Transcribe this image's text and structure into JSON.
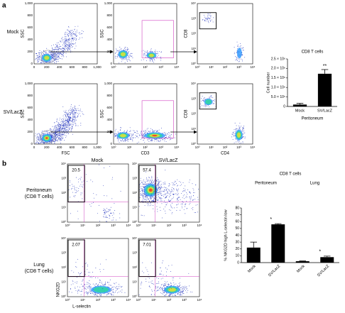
{
  "panel_a": {
    "label": "a",
    "rows": [
      "Mock",
      "SV/LacZ"
    ],
    "scatter_plot": {
      "x_label": "FSC",
      "y_label": "SSC",
      "ticks": [
        "0",
        "200",
        "400",
        "600",
        "800",
        "1,000"
      ]
    },
    "cd3_plot": {
      "x_label": "CD3",
      "y_label": "SSC"
    },
    "cd4_plot": {
      "x_label": "CD4",
      "y_label": "CD8"
    },
    "log_ticks": [
      "10⁰",
      "10¹",
      "10²",
      "10³",
      "10⁴"
    ]
  },
  "panel_b": {
    "label": "b",
    "columns": [
      "Mock",
      "SV/LacZ"
    ],
    "rows": [
      {
        "name": "Peritoneum",
        "subset": "(CD8 T cells)"
      },
      {
        "name": "Lung",
        "subset": "(CD8 T cells)"
      }
    ],
    "gate_percentages": [
      [
        20.5,
        57.4
      ],
      [
        2.07,
        7.01
      ]
    ],
    "x_label": "L-selectin",
    "y_label": "NKG2D",
    "log_ticks": [
      "10⁰",
      "10¹",
      "10²",
      "10³",
      "10⁴"
    ]
  },
  "chart_data": [
    {
      "type": "bar",
      "title": "CD8 T cells",
      "x_label": "Peritoneum",
      "y_label": "Cell number",
      "categories": [
        "Mock",
        "SV/LacZ"
      ],
      "values": [
        100000,
        1720000
      ],
      "errors": [
        60000,
        220000
      ],
      "color": "#000000",
      "ylim": [
        0,
        2500000
      ],
      "yticks": [
        0,
        {
          "value": 500000,
          "label": "5.0 × 10⁵"
        },
        {
          "value": 1000000,
          "label": "1.0 × 10⁶"
        },
        {
          "value": 1500000,
          "label": "1.5 × 10⁶"
        },
        {
          "value": 2000000,
          "label": "2.0 × 10⁶"
        },
        {
          "value": 2500000,
          "label": "2.5 × 10⁶"
        }
      ],
      "annotations": [
        "**"
      ]
    },
    {
      "type": "bar",
      "title": "CD8 T cells",
      "groups": [
        "Peritoneum",
        "Lung"
      ],
      "y_label": "% NKG2D high L-selectin low",
      "categories": [
        "Mock",
        "SV/LacZ",
        "Mock",
        "SV/LacZ"
      ],
      "values": [
        22,
        56,
        2,
        8
      ],
      "errors": [
        8,
        1,
        0.5,
        1.5
      ],
      "color": "#000000",
      "ylim": [
        0,
        80
      ],
      "yticks": [
        0,
        10,
        20,
        30,
        40,
        50,
        60,
        70,
        80
      ],
      "annotations": [
        "*",
        "*"
      ]
    }
  ]
}
